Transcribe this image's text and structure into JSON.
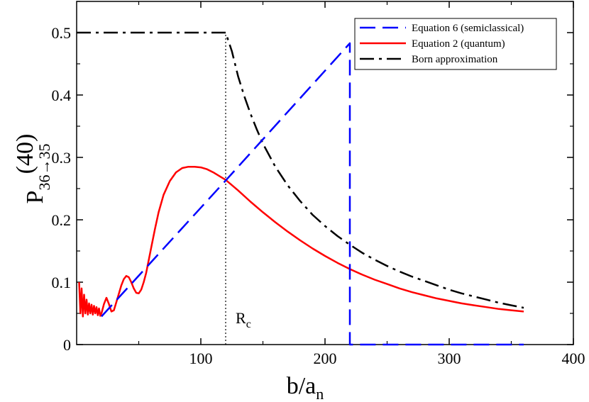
{
  "chart_data": {
    "type": "line",
    "title": "",
    "xlabel": {
      "main": "b/a",
      "sub": "n"
    },
    "ylabel": {
      "main": "P",
      "sup": "(40)",
      "sub": "36→35"
    },
    "xlim": [
      0,
      400
    ],
    "ylim": [
      0,
      0.55
    ],
    "x_ticks": [
      100,
      200,
      300,
      400
    ],
    "x_tick_labels": [
      "100",
      "200",
      "300",
      "400"
    ],
    "y_ticks": [
      0,
      0.1,
      0.2,
      0.3,
      0.4,
      0.5
    ],
    "y_tick_labels": [
      "0",
      "0.1",
      "0.2",
      "0.3",
      "0.4",
      "0.5"
    ],
    "grid": false,
    "legend_position": "top-right",
    "annotation": {
      "text": "R",
      "sub": "c",
      "x": 120
    },
    "vline": {
      "x": 120,
      "y_top": 0.5
    },
    "series": [
      {
        "name": "Equation 6 (semiclassical)",
        "color": "#0000ff",
        "style": "dashed",
        "x": [
          20,
          120,
          220,
          220,
          220,
          360
        ],
        "y": [
          0.045,
          0.263,
          0.483,
          0.0,
          0.0,
          0.0
        ]
      },
      {
        "name": "Equation 2 (quantum)",
        "color": "#ff0000",
        "style": "solid",
        "x": [
          2,
          3,
          4,
          5,
          6,
          7,
          8,
          9,
          10,
          11,
          12,
          13,
          14,
          15,
          16,
          17,
          18,
          19,
          20,
          22,
          24,
          26,
          28,
          30,
          33,
          36,
          38,
          40,
          42,
          44,
          46,
          48,
          50,
          52,
          54,
          56,
          58,
          60,
          63,
          66,
          70,
          75,
          80,
          85,
          90,
          95,
          100,
          105,
          110,
          115,
          120,
          130,
          140,
          150,
          160,
          170,
          180,
          190,
          200,
          210,
          220,
          230,
          240,
          250,
          260,
          270,
          280,
          290,
          300,
          310,
          320,
          330,
          340,
          350,
          360
        ],
        "y": [
          0.1,
          0.05,
          0.09,
          0.045,
          0.08,
          0.05,
          0.072,
          0.048,
          0.066,
          0.05,
          0.064,
          0.048,
          0.062,
          0.05,
          0.06,
          0.047,
          0.058,
          0.046,
          0.05,
          0.065,
          0.075,
          0.065,
          0.053,
          0.055,
          0.075,
          0.095,
          0.105,
          0.11,
          0.108,
          0.1,
          0.09,
          0.083,
          0.082,
          0.088,
          0.1,
          0.115,
          0.135,
          0.155,
          0.185,
          0.212,
          0.24,
          0.262,
          0.276,
          0.283,
          0.285,
          0.285,
          0.284,
          0.281,
          0.276,
          0.27,
          0.264,
          0.247,
          0.229,
          0.212,
          0.196,
          0.181,
          0.167,
          0.154,
          0.142,
          0.131,
          0.121,
          0.112,
          0.104,
          0.097,
          0.09,
          0.084,
          0.079,
          0.074,
          0.07,
          0.066,
          0.063,
          0.06,
          0.057,
          0.055,
          0.053
        ]
      },
      {
        "name": "Born approximation",
        "color": "#000000",
        "style": "dashdot",
        "x": [
          0,
          20,
          40,
          60,
          80,
          100,
          120,
          125,
          130,
          135,
          140,
          145,
          150,
          160,
          170,
          180,
          190,
          200,
          210,
          220,
          230,
          240,
          250,
          260,
          270,
          280,
          290,
          300,
          310,
          320,
          330,
          340,
          350,
          360
        ],
        "y": [
          0.5,
          0.5,
          0.5,
          0.5,
          0.5,
          0.5,
          0.5,
          0.47,
          0.43,
          0.398,
          0.37,
          0.345,
          0.322,
          0.285,
          0.255,
          0.23,
          0.208,
          0.19,
          0.174,
          0.16,
          0.147,
          0.136,
          0.126,
          0.117,
          0.109,
          0.102,
          0.095,
          0.088,
          0.082,
          0.077,
          0.072,
          0.067,
          0.063,
          0.059
        ]
      }
    ]
  }
}
